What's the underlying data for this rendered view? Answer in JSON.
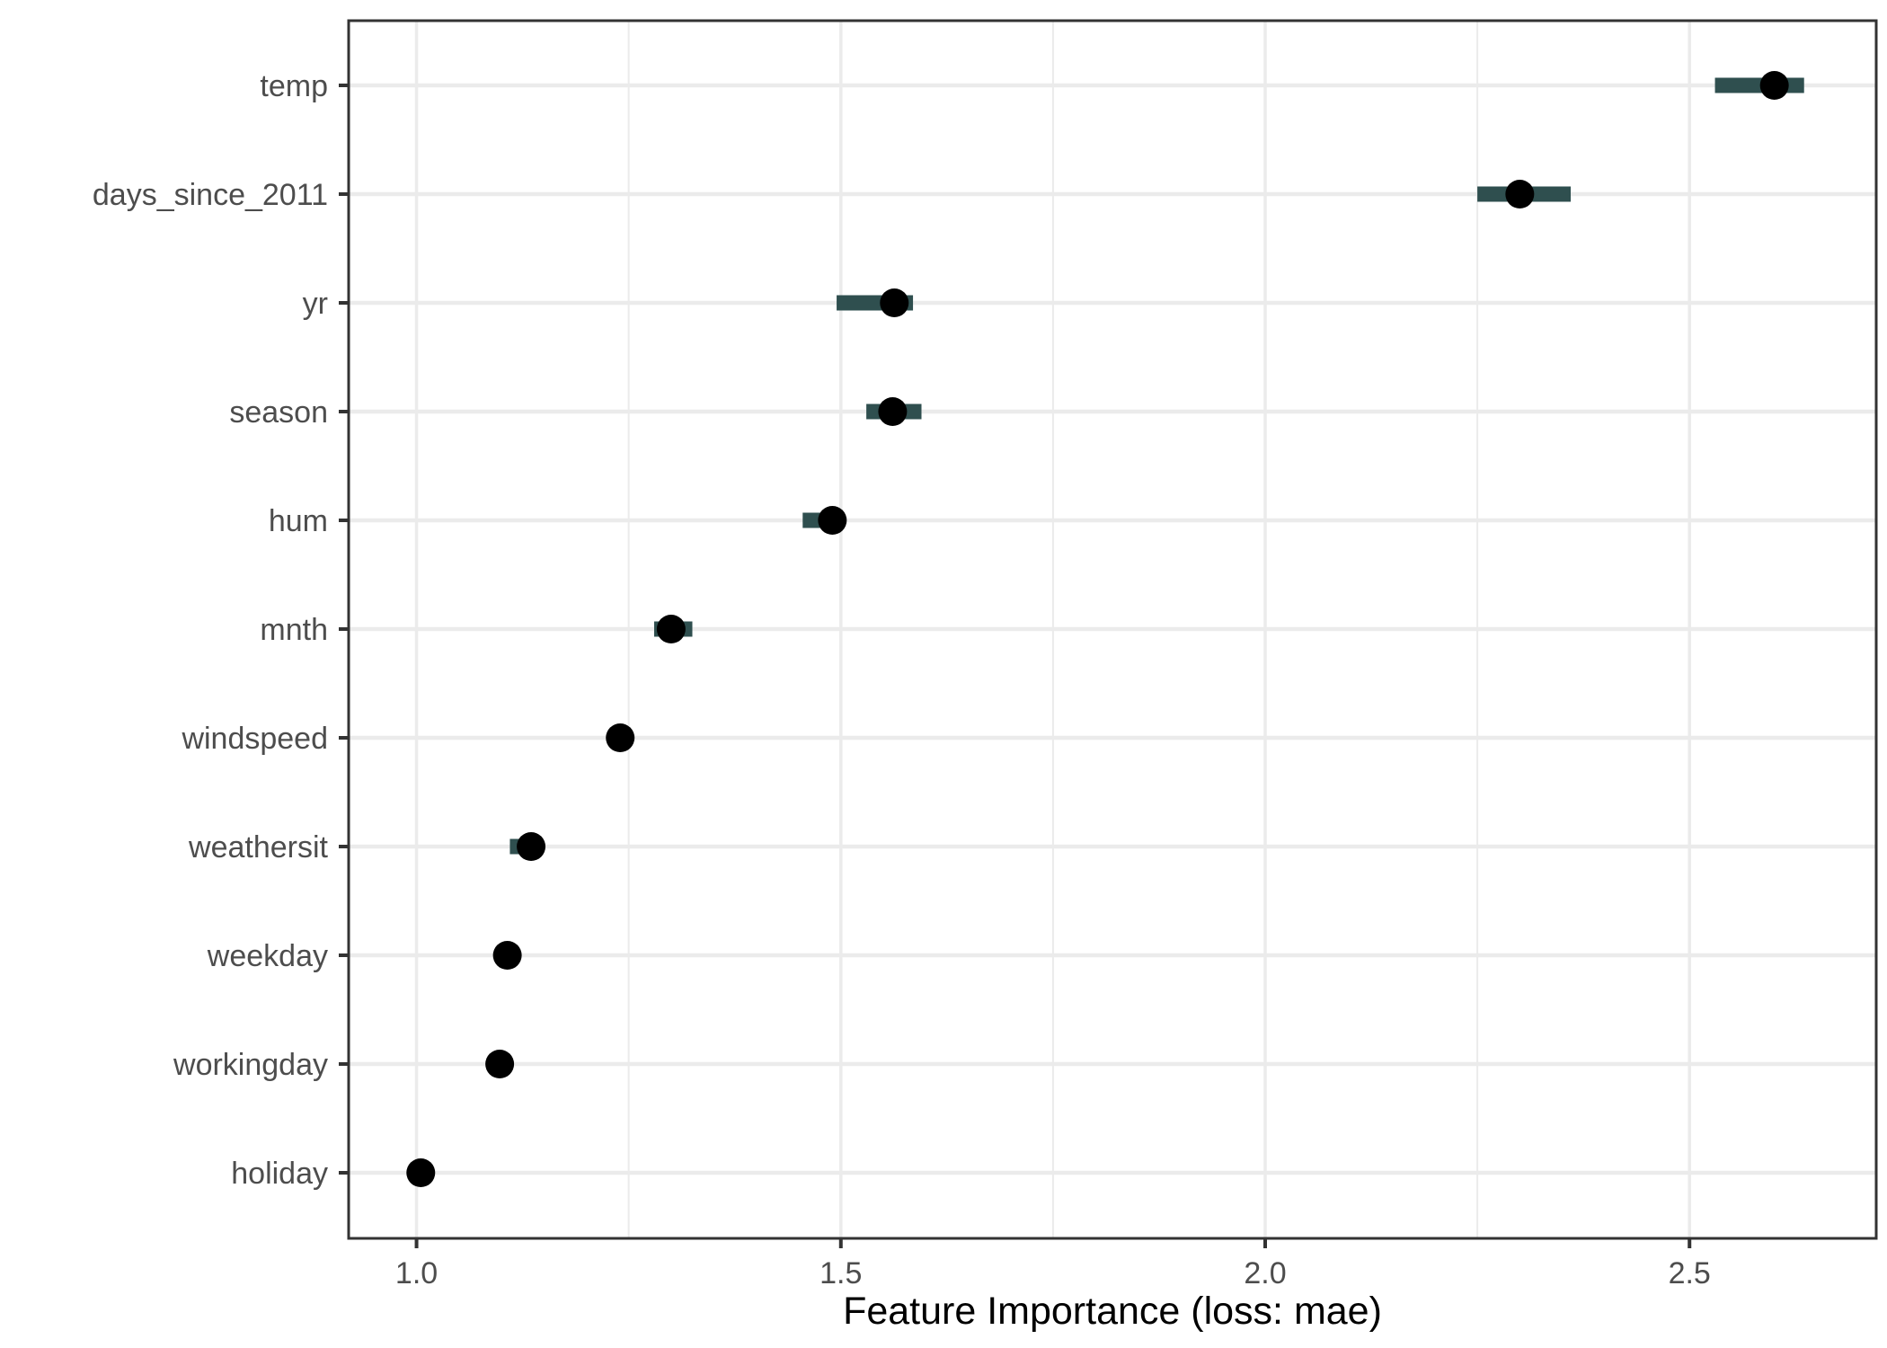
{
  "chart_data": {
    "type": "scatter",
    "title": "",
    "xlabel": "Feature Importance (loss: mae)",
    "ylabel": "",
    "xlim": [
      0.92,
      2.72
    ],
    "x_ticks": [
      1.0,
      1.5,
      2.0,
      2.5
    ],
    "x_tick_labels": [
      "1.0",
      "1.5",
      "2.0",
      "2.5"
    ],
    "grid": true,
    "legend": "none",
    "colors": {
      "interval": "#2f4f4f",
      "point": "#000000",
      "grid": "#ebebeb",
      "panel_border": "#333333",
      "tick_text": "#4d4d4d"
    },
    "features": [
      {
        "name": "temp",
        "importance": 2.6,
        "low": 2.53,
        "high": 2.635
      },
      {
        "name": "days_since_2011",
        "importance": 2.3,
        "low": 2.25,
        "high": 2.36
      },
      {
        "name": "yr",
        "importance": 1.563,
        "low": 1.495,
        "high": 1.585
      },
      {
        "name": "season",
        "importance": 1.561,
        "low": 1.53,
        "high": 1.595
      },
      {
        "name": "hum",
        "importance": 1.49,
        "low": 1.455,
        "high": 1.49
      },
      {
        "name": "mnth",
        "importance": 1.3,
        "low": 1.28,
        "high": 1.325
      },
      {
        "name": "windspeed",
        "importance": 1.24,
        "low": 1.24,
        "high": 1.24
      },
      {
        "name": "weathersit",
        "importance": 1.135,
        "low": 1.11,
        "high": 1.135
      },
      {
        "name": "weekday",
        "importance": 1.107,
        "low": 1.107,
        "high": 1.107
      },
      {
        "name": "workingday",
        "importance": 1.098,
        "low": 1.098,
        "high": 1.098
      },
      {
        "name": "holiday",
        "importance": 1.005,
        "low": 1.005,
        "high": 1.005
      }
    ]
  }
}
